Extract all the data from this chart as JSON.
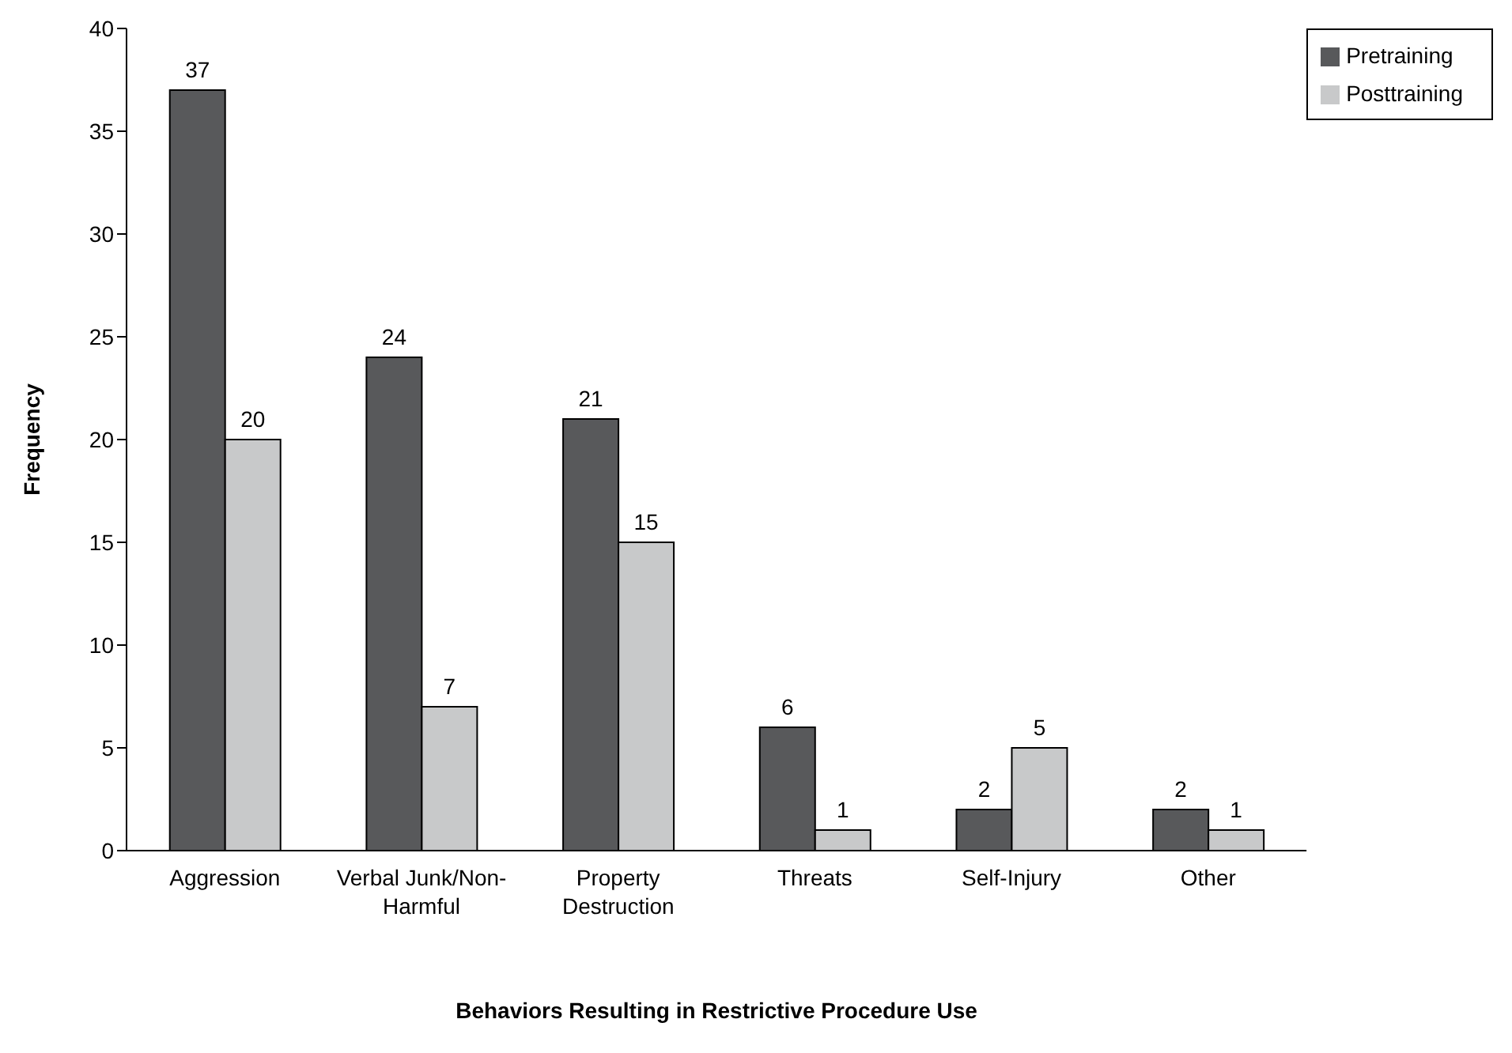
{
  "chart_data": {
    "type": "bar",
    "xlabel": "Behaviors Resulting in Restrictive Procedure Use",
    "ylabel": "Frequency",
    "categories": [
      "Aggression",
      "Verbal Junk/Non-Harmful",
      "Property Destruction",
      "Threats",
      "Self-Injury",
      "Other"
    ],
    "series": [
      {
        "name": "Pretraining",
        "color": "#58595b",
        "values": [
          37,
          24,
          21,
          6,
          2,
          2
        ]
      },
      {
        "name": "Posttraining",
        "color": "#c8c9ca",
        "values": [
          20,
          7,
          15,
          1,
          5,
          1
        ]
      }
    ],
    "ylim": [
      0,
      40
    ],
    "yticks": [
      0,
      5,
      10,
      15,
      20,
      25,
      30,
      35,
      40
    ],
    "grid": false,
    "legend": "top right",
    "data_labels": true
  }
}
